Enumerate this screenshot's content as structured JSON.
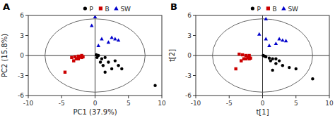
{
  "chart_data": [
    {
      "type": "scatter",
      "title": "A",
      "x_label": "PC1 (37.9%)",
      "y_label": "PC2 (15.8%)",
      "xlim": [
        -10,
        10
      ],
      "ylim": [
        -6,
        6
      ],
      "xticks": [
        -10,
        -5,
        0,
        5,
        10
      ],
      "yticks": [
        -6,
        -3,
        0,
        3,
        6
      ],
      "legend": "upper center",
      "ellipse": {
        "cx": 0,
        "cy": 0,
        "rx": 7.5,
        "ry": 5.5
      },
      "hlines": [
        0
      ],
      "vlines": [
        0
      ],
      "series": [
        {
          "name": "P",
          "color": "#000000",
          "marker": "circle",
          "x": [
            0.2,
            0.5,
            0.3,
            1.0,
            1.5,
            0.8,
            2.0,
            1.2,
            3.0,
            4.0,
            2.5,
            3.5,
            1.5,
            9.0
          ],
          "values": [
            0.1,
            0.0,
            -0.3,
            -0.5,
            -0.3,
            -1.0,
            -1.0,
            -1.5,
            -0.8,
            -2.0,
            -2.0,
            -1.5,
            -2.5,
            -4.5
          ]
        },
        {
          "name": "B",
          "color": "#cc0000",
          "marker": "square",
          "x": [
            -3.5,
            -3.0,
            -2.5,
            -2.0,
            -2.2,
            -2.8,
            -3.2,
            -2.5,
            -2.0,
            -1.8,
            -4.5
          ],
          "values": [
            -0.3,
            -0.2,
            -0.1,
            0.0,
            -0.2,
            -0.5,
            -0.8,
            -0.5,
            -0.3,
            -0.2,
            -2.5
          ]
        },
        {
          "name": "SW",
          "color": "#0000cc",
          "marker": "triangle",
          "x": [
            0.0,
            -0.5,
            1.0,
            0.5,
            2.5,
            3.0,
            3.5,
            2.0
          ],
          "values": [
            5.8,
            4.5,
            2.5,
            1.5,
            2.7,
            2.5,
            2.3,
            2.0
          ]
        }
      ]
    },
    {
      "type": "scatter",
      "title": "B",
      "x_label": "t[1]",
      "y_label": "t[2]",
      "xlim": [
        -10,
        10
      ],
      "ylim": [
        -6,
        6
      ],
      "xticks": [
        -10,
        -5,
        0,
        5,
        10
      ],
      "yticks": [
        -6,
        -3,
        0,
        3,
        6
      ],
      "legend": "upper center",
      "ellipse": {
        "cx": 0,
        "cy": 0,
        "rx": 7.5,
        "ry": 5.5
      },
      "hlines": [
        0
      ],
      "vlines": [
        0
      ],
      "series": [
        {
          "name": "P",
          "color": "#000000",
          "marker": "circle",
          "x": [
            0.1,
            0.3,
            0.5,
            1.0,
            1.5,
            2.0,
            1.2,
            2.5,
            2.0,
            3.0,
            4.0,
            1.5,
            5.0,
            7.5
          ],
          "values": [
            0.0,
            -0.1,
            -0.2,
            -0.4,
            -0.5,
            -0.5,
            -0.8,
            -0.8,
            -1.2,
            -1.5,
            -1.8,
            -2.2,
            -2.0,
            -3.5
          ]
        },
        {
          "name": "B",
          "color": "#cc0000",
          "marker": "square",
          "x": [
            -3.5,
            -3.0,
            -2.5,
            -2.0,
            -2.2,
            -2.8,
            -3.2,
            -2.5,
            -2.0,
            -1.8,
            -4.0
          ],
          "values": [
            0.2,
            0.1,
            0.0,
            0.0,
            -0.3,
            -0.5,
            -0.8,
            -0.5,
            -0.5,
            -0.4,
            -2.0
          ]
        },
        {
          "name": "SW",
          "color": "#0000cc",
          "marker": "triangle",
          "x": [
            0.5,
            -0.5,
            0.5,
            1.0,
            2.5,
            3.0,
            3.5,
            2.0
          ],
          "values": [
            5.5,
            3.2,
            2.5,
            1.5,
            2.5,
            2.3,
            2.2,
            1.8
          ]
        }
      ]
    }
  ]
}
